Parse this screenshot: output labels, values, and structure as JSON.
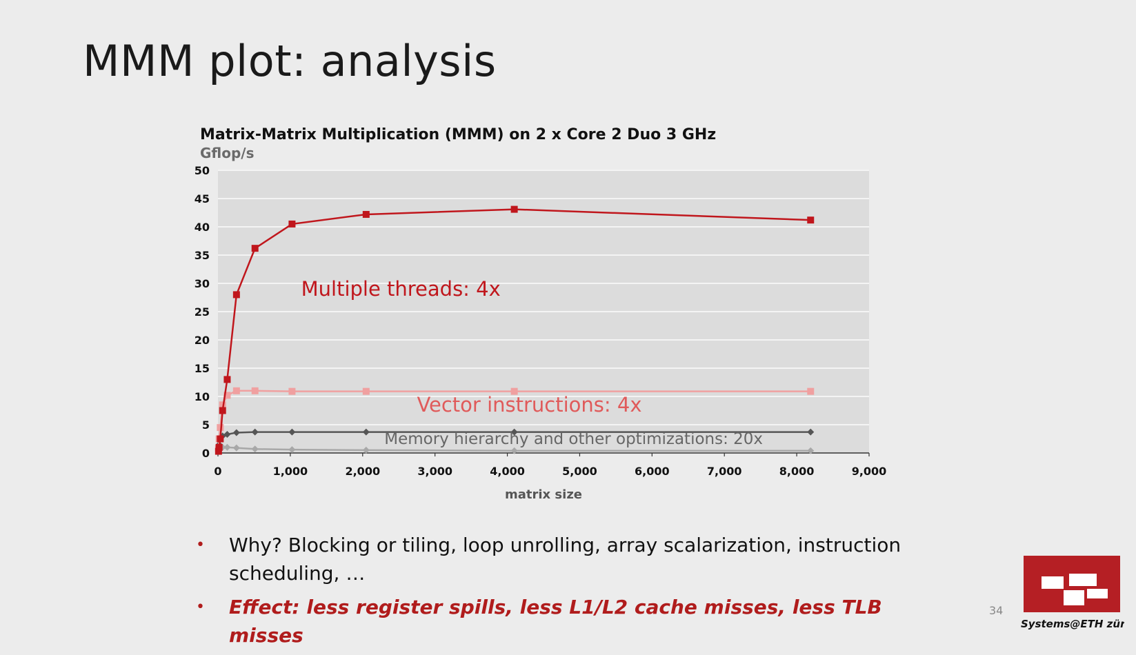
{
  "slide": {
    "title": "MMM plot: analysis",
    "page_number": "34",
    "bullets": [
      {
        "text": "Why? Blocking or tiling, loop unrolling, array scalarization, instruction scheduling, …",
        "emphasis": false
      },
      {
        "text": "Effect: less register spills, less L1/L2 cache misses, less TLB misses",
        "emphasis": true
      }
    ],
    "logo_text": "Systems@ETH zürich"
  },
  "chart_data": {
    "type": "line",
    "title": "Matrix-Matrix Multiplication (MMM) on 2 x Core 2 Duo 3 GHz",
    "ylabel": "Gflop/s",
    "xlabel": "matrix size",
    "xlim": [
      0,
      9000
    ],
    "ylim": [
      0,
      50
    ],
    "xticks": [
      0,
      1000,
      2000,
      3000,
      4000,
      5000,
      6000,
      7000,
      8000,
      9000
    ],
    "xtick_labels": [
      "0",
      "1,000",
      "2,000",
      "3,000",
      "4,000",
      "5,000",
      "6,000",
      "7,000",
      "8,000",
      "9,000"
    ],
    "yticks": [
      0,
      5,
      10,
      15,
      20,
      25,
      30,
      35,
      40,
      45,
      50
    ],
    "grid": true,
    "legend": "none",
    "series": [
      {
        "color": "#a8a8a8",
        "marker": "diamond",
        "x": [
          8,
          16,
          32,
          64,
          128,
          256,
          512,
          1024,
          2048,
          4096,
          8192
        ],
        "y": [
          0.4,
          0.7,
          0.9,
          1.0,
          1.0,
          0.9,
          0.7,
          0.6,
          0.5,
          0.4,
          0.4
        ]
      },
      {
        "color": "#555555",
        "marker": "diamond",
        "x": [
          8,
          16,
          32,
          64,
          128,
          256,
          512,
          1024,
          2048,
          4096,
          8192
        ],
        "y": [
          0.6,
          1.5,
          2.5,
          3.0,
          3.3,
          3.6,
          3.7,
          3.7,
          3.7,
          3.7,
          3.7
        ]
      },
      {
        "color": "#f0a0a0",
        "marker": "square",
        "x": [
          8,
          16,
          32,
          64,
          128,
          256,
          512,
          1024,
          2048,
          4096,
          8192
        ],
        "y": [
          0.8,
          2.5,
          4.5,
          8.5,
          10.2,
          11.0,
          11.0,
          10.9,
          10.9,
          10.9,
          10.9
        ]
      },
      {
        "color": "#c0161c",
        "marker": "square",
        "x": [
          8,
          16,
          32,
          64,
          128,
          256,
          512,
          1024,
          2048,
          4096,
          8192
        ],
        "y": [
          0.3,
          1.0,
          2.5,
          7.5,
          13.0,
          28.0,
          36.2,
          40.5,
          42.2,
          43.1,
          41.2
        ]
      }
    ],
    "annotations": [
      {
        "text": "Multiple threads: 4x",
        "x": 1150,
        "y": 27.8,
        "color": "#c0161c",
        "size": 29
      },
      {
        "text": "Vector instructions: 4x",
        "x": 2750,
        "y": 7.3,
        "color": "#e05a5a",
        "size": 29
      },
      {
        "text": "Memory hierarchy and other optimizations: 20x",
        "x": 2300,
        "y": 1.6,
        "color": "#666666",
        "size": 23
      }
    ]
  }
}
